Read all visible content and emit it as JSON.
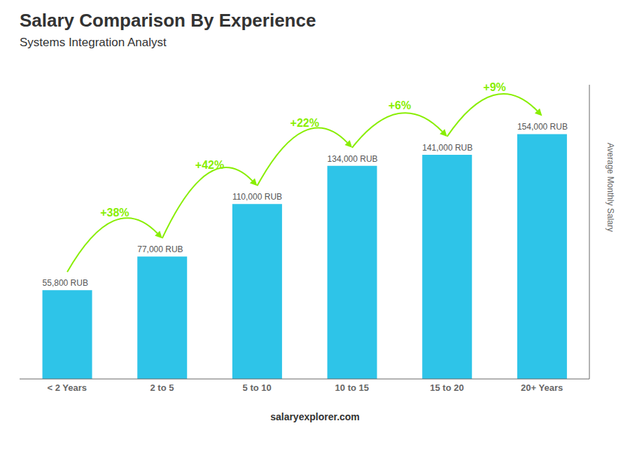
{
  "chart_data": {
    "type": "bar",
    "title": "Salary Comparison By Experience",
    "subtitle": "Systems Integration Analyst",
    "categories": [
      "< 2 Years",
      "2 to 5",
      "5 to 10",
      "10 to 15",
      "15 to 20",
      "20+ Years"
    ],
    "values": [
      55800,
      77000,
      110000,
      134000,
      141000,
      154000
    ],
    "value_labels": [
      "55,800 RUB",
      "77,000 RUB",
      "110,000 RUB",
      "134,000 RUB",
      "141,000 RUB",
      "154,000 RUB"
    ],
    "data_labels": true,
    "color": "#2ec4e8",
    "y_label": "Average Monthly Salary",
    "ylim": [
      0,
      185000
    ],
    "tick_labels": "x",
    "grid": false,
    "annotations": [
      {
        "text": "+38%",
        "from": "< 2 Years",
        "to": "2 to 5",
        "color": "#88ee00"
      },
      {
        "text": "+42%",
        "from": "2 to 5",
        "to": "5 to 10",
        "color": "#88ee00"
      },
      {
        "text": "+22%",
        "from": "5 to 10",
        "to": "10 to 15",
        "color": "#88ee00"
      },
      {
        "text": "+6%",
        "from": "10 to 15",
        "to": "15 to 20",
        "color": "#88ee00"
      },
      {
        "text": "+9%",
        "from": "15 to 20",
        "to": "20+ Years",
        "color": "#88ee00"
      },
      {
        "text": "salaryexplorer.com"
      }
    ]
  }
}
